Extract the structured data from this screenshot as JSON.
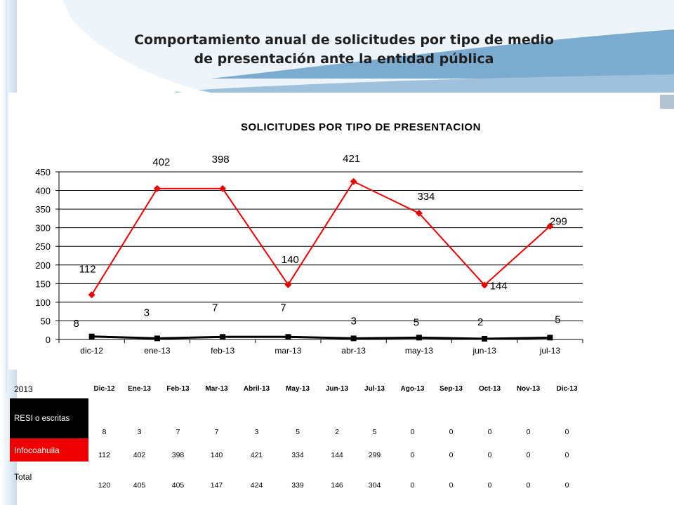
{
  "slide": {
    "title_line1": "Comportamiento anual de solicitudes por tipo de medio",
    "title_line2": "de presentación ante la entidad pública"
  },
  "chart_data": {
    "type": "line",
    "title": "SOLICITUDES POR TIPO DE PRESENTACION",
    "categories": [
      "dic-12",
      "ene-13",
      "feb-13",
      "mar-13",
      "abr-13",
      "may-13",
      "jun-13",
      "jul-13"
    ],
    "ylim": [
      0,
      450
    ],
    "yticks": [
      0,
      50,
      100,
      150,
      200,
      250,
      300,
      350,
      400,
      450
    ],
    "grid": true,
    "legend": "none",
    "series": [
      {
        "name": "Total",
        "values": [
          120,
          405,
          405,
          147,
          424,
          339,
          146,
          304
        ],
        "color": "#ee0000",
        "marker": "diamond"
      },
      {
        "name": "RESI o escritas",
        "values": [
          8,
          3,
          7,
          7,
          3,
          5,
          2,
          5
        ],
        "color": "#000000",
        "marker": "square"
      }
    ],
    "annotations": [
      {
        "text": "112",
        "x": "dic-12",
        "y": 120
      },
      {
        "text": "402",
        "x": "ene-13",
        "y": 405
      },
      {
        "text": "398",
        "x": "feb-13",
        "y": 405
      },
      {
        "text": "140",
        "x": "mar-13",
        "y": 147
      },
      {
        "text": "421",
        "x": "abr-13",
        "y": 424
      },
      {
        "text": "334",
        "x": "may-13",
        "y": 339
      },
      {
        "text": "144",
        "x": "jun-13",
        "y": 146
      },
      {
        "text": "299",
        "x": "jul-13",
        "y": 304
      },
      {
        "text": "8",
        "x": "dic-12",
        "y": 8
      },
      {
        "text": "3",
        "x": "ene-13",
        "y": 3
      },
      {
        "text": "7",
        "x": "feb-13",
        "y": 7
      },
      {
        "text": "7",
        "x": "mar-13",
        "y": 7
      },
      {
        "text": "3",
        "x": "abr-13",
        "y": 3
      },
      {
        "text": "5",
        "x": "may-13",
        "y": 5
      },
      {
        "text": "2",
        "x": "jun-13",
        "y": 2
      },
      {
        "text": "5",
        "x": "jul-13",
        "y": 5
      }
    ]
  },
  "table": {
    "corner": "2013",
    "headers": [
      "Dic-12",
      "Ene-13",
      "Feb-13",
      "Mar-13",
      "Abril-13",
      "May-13",
      "Jun-13",
      "Jul-13",
      "Ago-13",
      "Sep-13",
      "Oct-13",
      "Nov-13",
      "Dic-13"
    ],
    "rows": [
      {
        "label": "RESI o escritas",
        "values": [
          "8",
          "3",
          "7",
          "7",
          "3",
          "5",
          "2",
          "5",
          "0",
          "0",
          "0",
          "0",
          "0"
        ]
      },
      {
        "label": "Infocoahuila",
        "values": [
          "112",
          "402",
          "398",
          "140",
          "421",
          "334",
          "144",
          "299",
          "0",
          "0",
          "0",
          "0",
          "0"
        ]
      },
      {
        "label": "Total",
        "values": [
          "120",
          "405",
          "405",
          "147",
          "424",
          "339",
          "146",
          "304",
          "0",
          "0",
          "0",
          "0",
          "0"
        ]
      }
    ]
  }
}
